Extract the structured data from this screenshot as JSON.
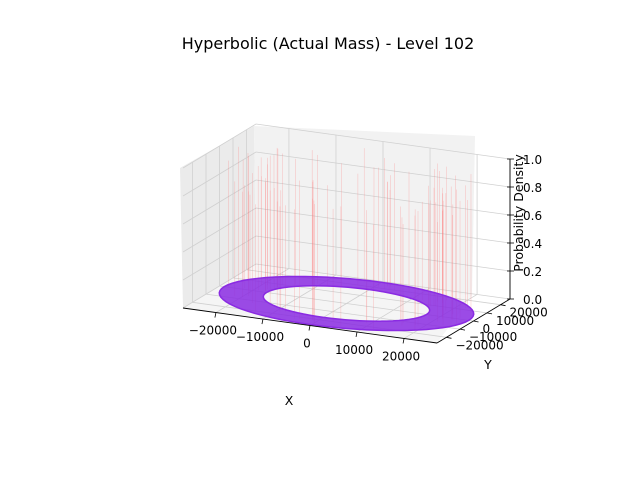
{
  "chart_data": {
    "type": "scatter",
    "projection": "3d",
    "title": "Hyperbolic (Actual Mass) - Level 102",
    "xlabel": "X",
    "ylabel": "Y",
    "zlabel": "Probability Density",
    "x_ticks": [
      "−20000",
      "−10000",
      "0",
      "10000",
      "20000"
    ],
    "y_ticks": [
      "−20000",
      "−10000",
      "0",
      "10000",
      "20000"
    ],
    "z_ticks": [
      "0.0",
      "0.2",
      "0.4",
      "0.6",
      "0.8",
      "1.0"
    ],
    "xlim": [
      -27000,
      27000
    ],
    "ylim": [
      -27000,
      27000
    ],
    "zlim": [
      0,
      1
    ],
    "grid": true,
    "series": [
      {
        "kind": "ring-surface",
        "color": "#8a2be2",
        "inner_radius": 17000,
        "outer_radius": 26000,
        "z": 0
      },
      {
        "kind": "density-stems",
        "color": "#ff6b6b",
        "radius_range": [
          17000,
          26000
        ],
        "z_max": 1.0
      }
    ]
  }
}
